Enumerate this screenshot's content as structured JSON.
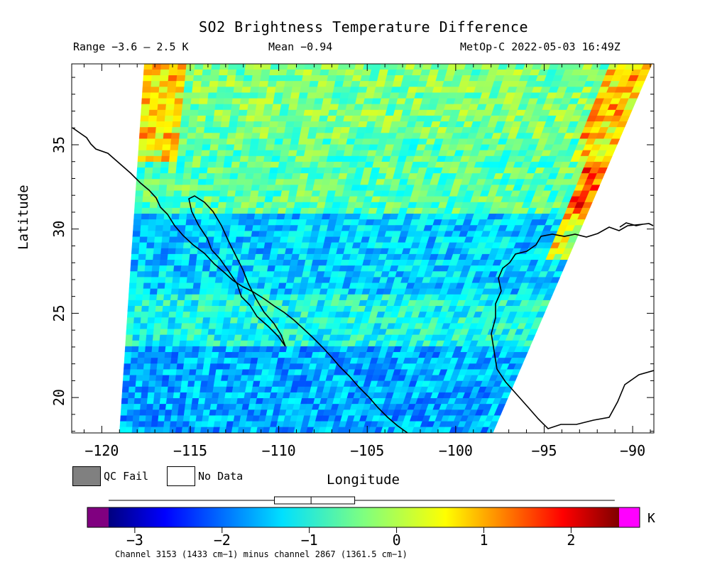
{
  "title": "SO2 Brightness Temperature Difference",
  "range_text": "Range −3.6 – 2.5 K",
  "mean_text": "Mean −0.94",
  "satellite_text": "MetOp-C 2022-05-03 16:49Z",
  "legend": {
    "qc_fail_label": "QC Fail",
    "qc_fail_color": "#808080",
    "no_data_label": "No Data",
    "no_data_color": "#ffffff"
  },
  "colorbar": {
    "unit": "K",
    "min": -3.3,
    "max": 2.55,
    "underflow_color": "#800080",
    "overflow_color": "#ff00ff",
    "tick_values": [
      -3,
      -2,
      -1,
      0,
      1,
      2
    ],
    "tick_labels": [
      "−3",
      "−2",
      "−1",
      "0",
      "1",
      "2"
    ],
    "boxplot": {
      "whisker_low": -3.3,
      "q1": -1.4,
      "median": -0.98,
      "q3": -0.48,
      "whisker_high": 2.5
    }
  },
  "footnote": "Channel 3153 (1433 cm−1) minus channel 2867 (1361.5 cm−1)",
  "chart_data": {
    "type": "heatmap",
    "title": "SO2 Brightness Temperature Difference",
    "xlabel": "Longitude",
    "ylabel": "Latitude",
    "xlim": [
      -121.7,
      -88.8
    ],
    "ylim": [
      17.9,
      39.8
    ],
    "x_ticks": [
      -120,
      -115,
      -110,
      -105,
      -100,
      -95,
      -90
    ],
    "x_tick_labels": [
      "−120",
      "−115",
      "−110",
      "−105",
      "−100",
      "−95",
      "−90"
    ],
    "y_ticks": [
      20,
      25,
      30,
      35
    ],
    "y_tick_labels": [
      "20",
      "25",
      "30",
      "35"
    ],
    "value_range": [
      -3.6,
      2.5
    ],
    "mean": -0.94,
    "unit": "K",
    "swath_corners": {
      "top_left": [
        -117.6,
        39.8
      ],
      "top_right": [
        -88.9,
        39.8
      ],
      "bottom_right": [
        -97.9,
        17.9
      ],
      "bottom_left": [
        -119.0,
        17.9
      ]
    },
    "value_bands": [
      {
        "lat_min": 35.5,
        "lat_max": 39.8,
        "typical_value": -0.4,
        "note": "warmer band with high values near east and west edges"
      },
      {
        "lat_min": 31.0,
        "lat_max": 35.5,
        "typical_value": -0.6
      },
      {
        "lat_min": 26.0,
        "lat_max": 31.0,
        "typical_value": -1.4
      },
      {
        "lat_min": 23.0,
        "lat_max": 26.0,
        "typical_value": -1.0
      },
      {
        "lat_min": 17.9,
        "lat_max": 23.0,
        "typical_value": -1.6
      }
    ]
  }
}
